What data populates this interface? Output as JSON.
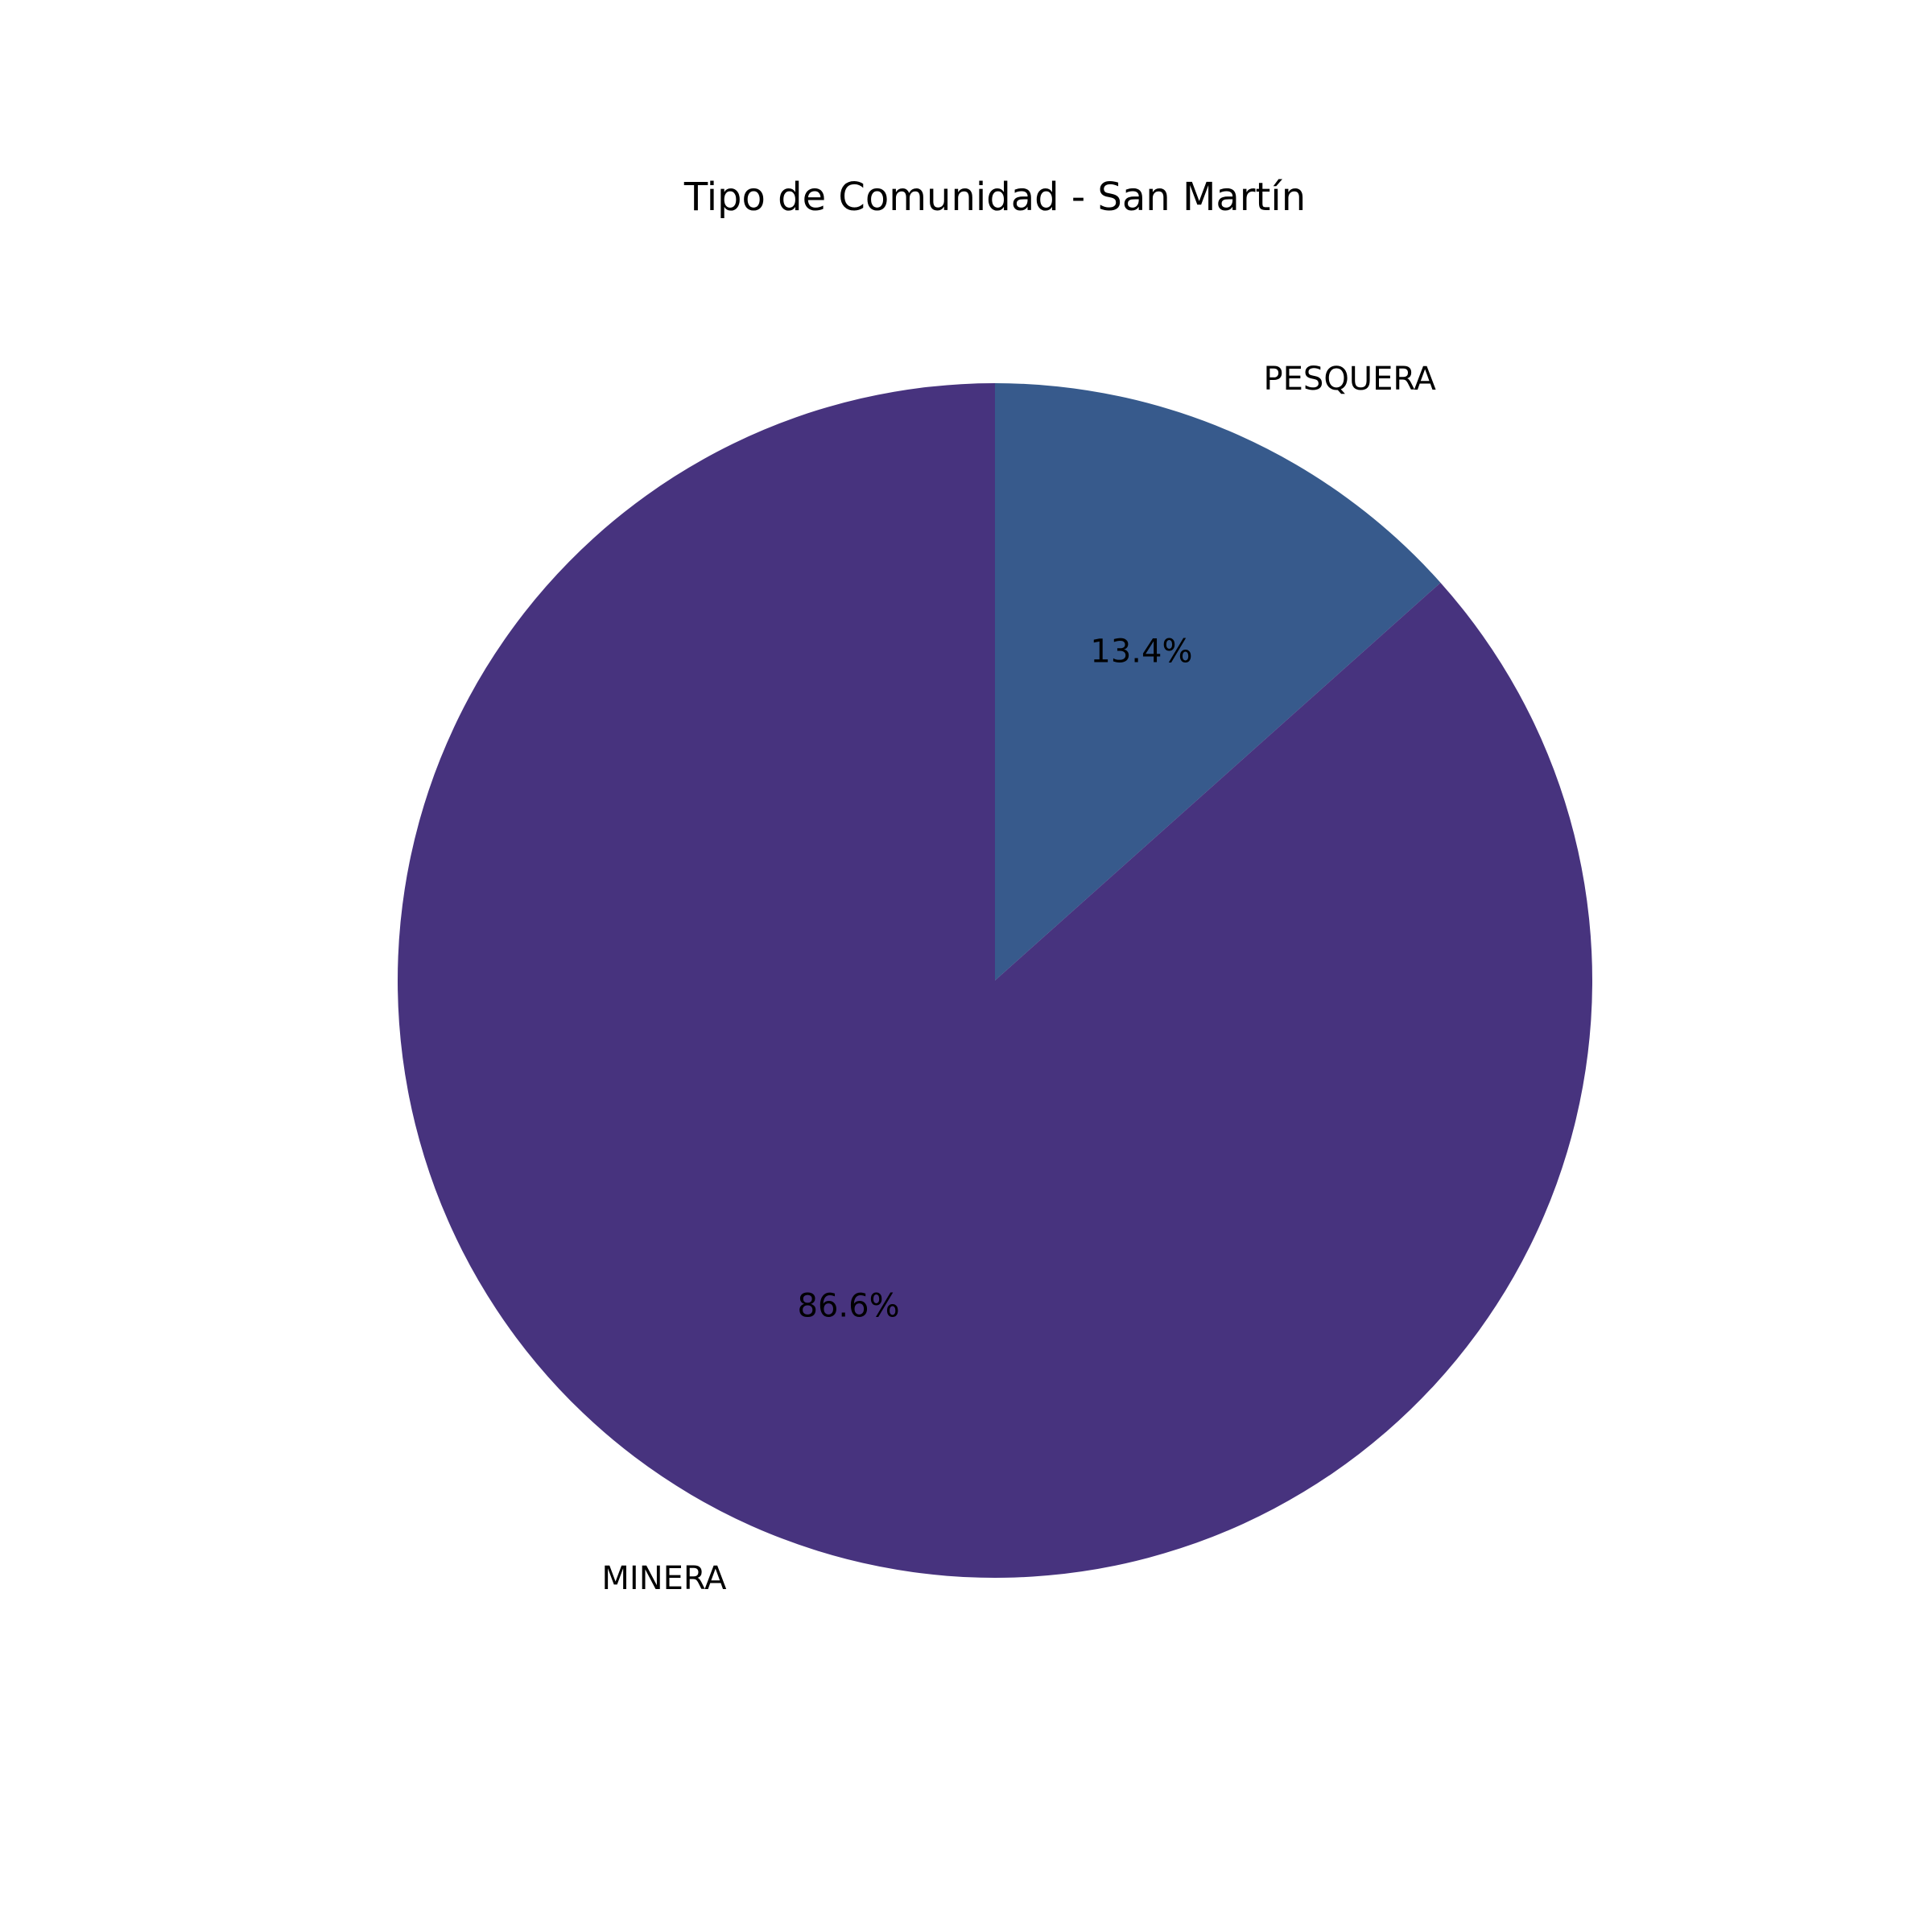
{
  "chart_data": {
    "type": "pie",
    "title": "Tipo de Comunidad - San Martín",
    "start_angle_deg": 90,
    "direction": "clockwise",
    "slices": [
      {
        "label": "PESQUERA",
        "value": 13.4,
        "pct_label": "13.4%",
        "color": "#375a8c"
      },
      {
        "label": "MINERA",
        "value": 86.6,
        "pct_label": "86.6%",
        "color": "#47337e"
      }
    ]
  }
}
